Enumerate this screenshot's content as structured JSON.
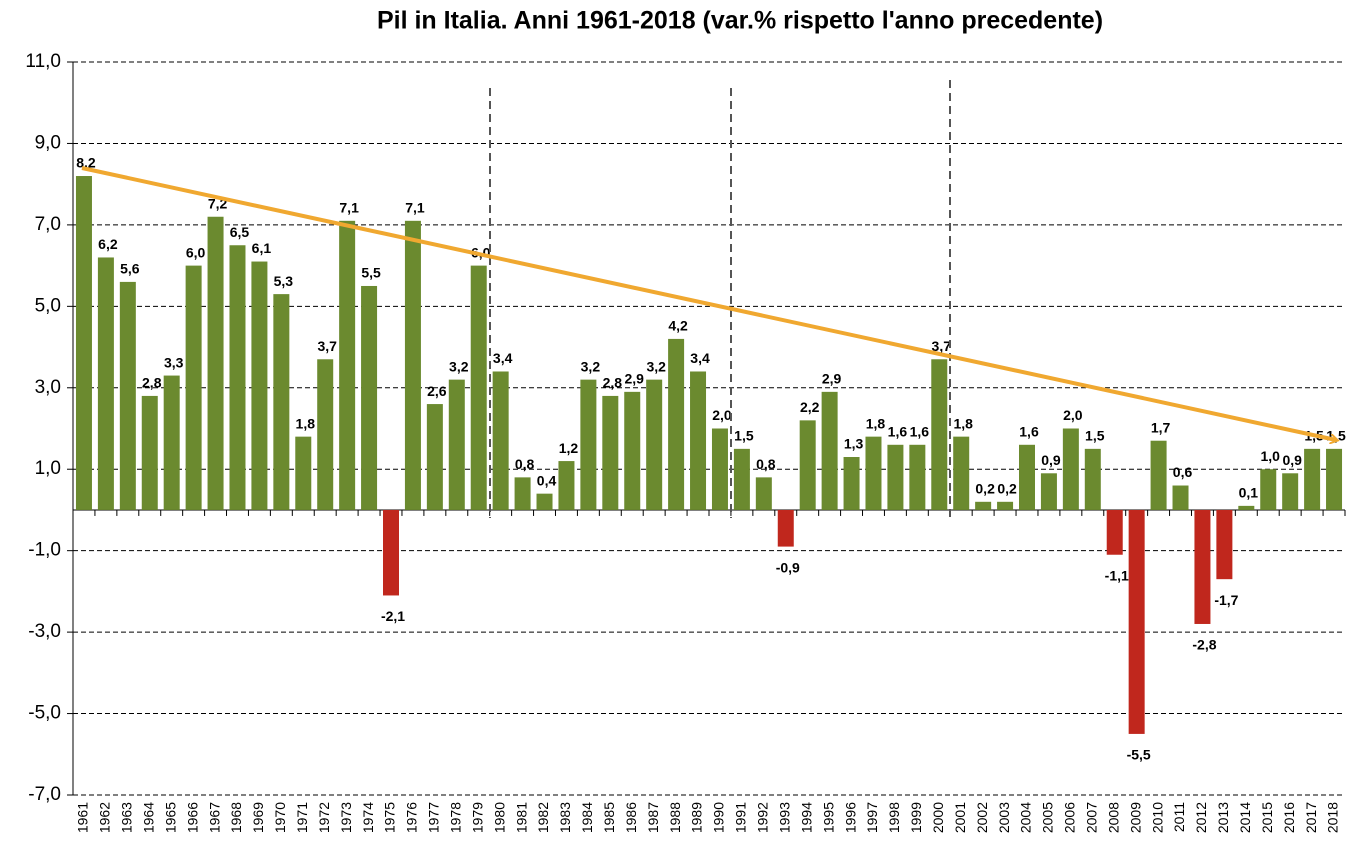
{
  "chart_data": {
    "type": "bar",
    "title": "Pil in Italia. Anni 1961-2018 (var.% rispetto l'anno precedente)",
    "categories": [
      "1961",
      "1962",
      "1963",
      "1964",
      "1965",
      "1966",
      "1967",
      "1968",
      "1969",
      "1970",
      "1971",
      "1972",
      "1973",
      "1974",
      "1975",
      "1976",
      "1977",
      "1978",
      "1979",
      "1980",
      "1981",
      "1982",
      "1983",
      "1984",
      "1985",
      "1986",
      "1987",
      "1988",
      "1989",
      "1990",
      "1991",
      "1992",
      "1993",
      "1994",
      "1995",
      "1996",
      "1997",
      "1998",
      "1999",
      "2000",
      "2001",
      "2002",
      "2003",
      "2004",
      "2005",
      "2006",
      "2007",
      "2008",
      "2009",
      "2010",
      "2011",
      "2012",
      "2013",
      "2014",
      "2015",
      "2016",
      "2017",
      "2018"
    ],
    "values": [
      8.2,
      6.2,
      5.6,
      2.8,
      3.3,
      6.0,
      7.2,
      6.5,
      6.1,
      5.3,
      1.8,
      3.7,
      7.1,
      5.5,
      -2.1,
      7.1,
      2.6,
      3.2,
      6.0,
      3.4,
      0.8,
      0.4,
      1.2,
      3.2,
      2.8,
      2.9,
      3.2,
      4.2,
      3.4,
      2.0,
      1.5,
      0.8,
      -0.9,
      2.2,
      2.9,
      1.3,
      1.8,
      1.6,
      1.6,
      3.7,
      1.8,
      0.2,
      0.2,
      1.6,
      0.9,
      2.0,
      1.5,
      -1.1,
      -5.5,
      1.7,
      0.6,
      -2.8,
      -1.7,
      0.1,
      1.0,
      0.9,
      1.5,
      1.5
    ],
    "value_labels": [
      "8,2",
      "6,2",
      "5,6",
      "2,8",
      "3,3",
      "6,0",
      "7,2",
      "6,5",
      "6,1",
      "5,3",
      "1,8",
      "3,7",
      "7,1",
      "5,5",
      "-2,1",
      "7,1",
      "2,6",
      "3,2",
      "6,0",
      "3,4",
      "0,8",
      "0,4",
      "1,2",
      "3,2",
      "2,8",
      "2,9",
      "3,2",
      "4,2",
      "3,4",
      "2,0",
      "1,5",
      "0,8",
      "-0,9",
      "2,2",
      "2,9",
      "1,3",
      "1,8",
      "1,6",
      "1,6",
      "3,7",
      "1,8",
      "0,2",
      "0,2",
      "1,6",
      "0,9",
      "2,0",
      "1,5",
      "-1,1",
      "-5,5",
      "1,7",
      "0,6",
      "-2,8",
      "-1,7",
      "0,1",
      "1,0",
      "0,9",
      "1,5",
      "1,5"
    ],
    "positive_color": "#6b8a2f",
    "negative_color": "#c0271d",
    "ylim": [
      -7,
      11
    ],
    "yticks": [
      {
        "value": -7,
        "label": "-7,0"
      },
      {
        "value": -5,
        "label": "-5,0"
      },
      {
        "value": -3,
        "label": "-3,0"
      },
      {
        "value": -1,
        "label": "-1,0"
      },
      {
        "value": 1,
        "label": "1,0"
      },
      {
        "value": 3,
        "label": "3,0"
      },
      {
        "value": 5,
        "label": "5,0"
      },
      {
        "value": 7,
        "label": "7,0"
      },
      {
        "value": 9,
        "label": "9,0"
      },
      {
        "value": 11,
        "label": "11,0"
      }
    ],
    "grid": true
  }
}
